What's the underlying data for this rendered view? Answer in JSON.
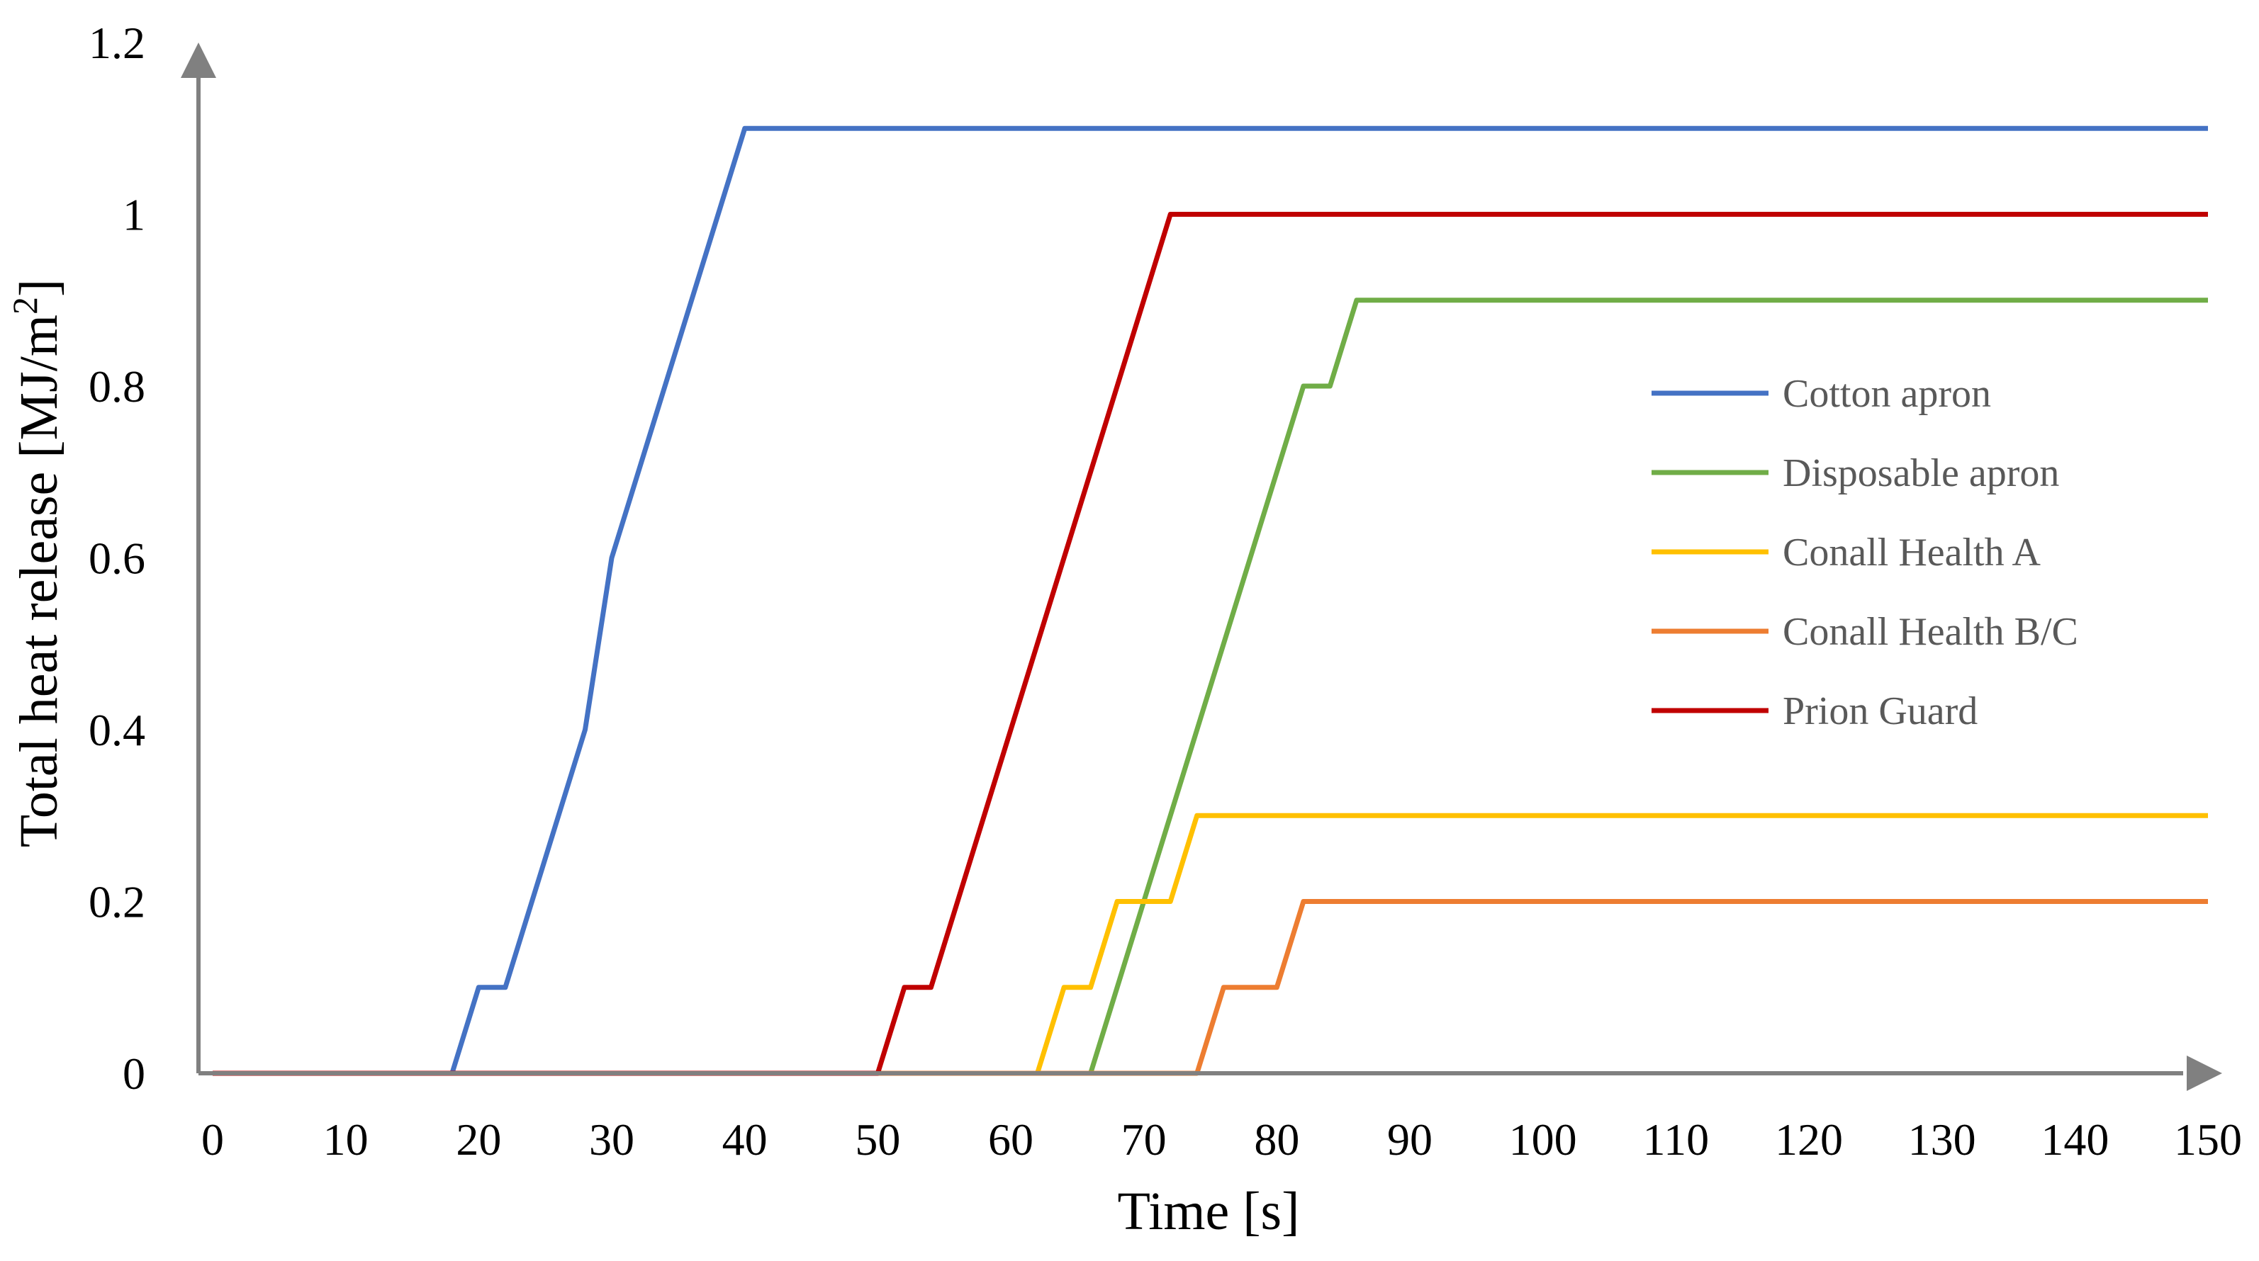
{
  "chart_data": {
    "type": "line",
    "title": "",
    "xlabel": "Time [s]",
    "ylabel_main": "Total heat release [MJ/m",
    "ylabel_sup": "2",
    "ylabel_end": "]",
    "xlim": [
      0,
      150
    ],
    "ylim": [
      0,
      1.2
    ],
    "x_ticks": [
      "0",
      "10",
      "20",
      "30",
      "40",
      "50",
      "60",
      "70",
      "80",
      "90",
      "100",
      "110",
      "120",
      "130",
      "140",
      "150"
    ],
    "y_ticks": [
      "0",
      "0.2",
      "0.4",
      "0.6",
      "0.8",
      "1",
      "1.2"
    ],
    "legend_position": "right",
    "grid": false,
    "series": [
      {
        "name": "Cotton apron",
        "color": "#4472C4",
        "points": [
          [
            0,
            0
          ],
          [
            18,
            0
          ],
          [
            20,
            0.1
          ],
          [
            22,
            0.1
          ],
          [
            28,
            0.4
          ],
          [
            30,
            0.6
          ],
          [
            40,
            1.1
          ],
          [
            150,
            1.1
          ]
        ]
      },
      {
        "name": "Disposable apron",
        "color": "#70AD47",
        "points": [
          [
            0,
            0
          ],
          [
            66,
            0
          ],
          [
            82,
            0.8
          ],
          [
            84,
            0.8
          ],
          [
            86,
            0.9
          ],
          [
            150,
            0.9
          ]
        ]
      },
      {
        "name": "Conall Health A",
        "color": "#FFC000",
        "points": [
          [
            0,
            0
          ],
          [
            62,
            0
          ],
          [
            64,
            0.1
          ],
          [
            66,
            0.1
          ],
          [
            68,
            0.2
          ],
          [
            72,
            0.2
          ],
          [
            74,
            0.3
          ],
          [
            150,
            0.3
          ]
        ]
      },
      {
        "name": "Conall Health B/C",
        "color": "#ED7D31",
        "points": [
          [
            0,
            0
          ],
          [
            74,
            0
          ],
          [
            76,
            0.1
          ],
          [
            80,
            0.1
          ],
          [
            82,
            0.2
          ],
          [
            150,
            0.2
          ]
        ]
      },
      {
        "name": "Prion Guard",
        "color": "#C00000",
        "points": [
          [
            0,
            0
          ],
          [
            50,
            0
          ],
          [
            52,
            0.1
          ],
          [
            54,
            0.1
          ],
          [
            72,
            1.0
          ],
          [
            150,
            1.0
          ]
        ]
      }
    ]
  }
}
